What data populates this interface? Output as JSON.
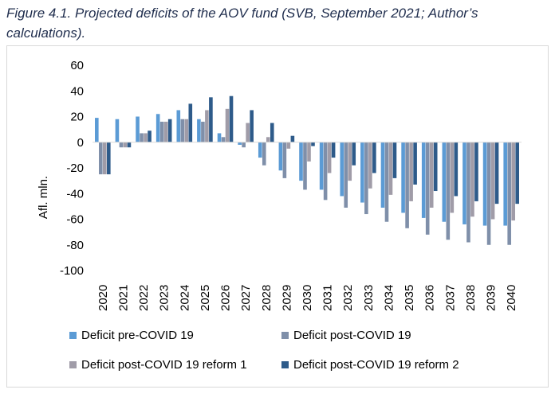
{
  "caption": "Figure 4.1. Projected deficits of the AOV fund (SVB, September 2021; Author’s calculations).",
  "chart_data": {
    "type": "bar",
    "title": "",
    "xlabel": "",
    "ylabel": "Afl. mln.",
    "ylim": [
      -100,
      60
    ],
    "yticks": [
      60,
      40,
      20,
      0,
      -20,
      -40,
      -60,
      -80,
      -100
    ],
    "grid": false,
    "legend_position": "bottom",
    "categories": [
      "2020",
      "2021",
      "2022",
      "2023",
      "2024",
      "2025",
      "2026",
      "2027",
      "2028",
      "2029",
      "2030",
      "2031",
      "2032",
      "2033",
      "2034",
      "2035",
      "2036",
      "2037",
      "2038",
      "2039",
      "2040"
    ],
    "series": [
      {
        "name": "Deficit pre-COVID 19",
        "color": "#5b9bd5",
        "values": [
          19,
          18,
          20,
          22,
          25,
          18,
          7,
          -2,
          -12,
          -22,
          -30,
          -37,
          -42,
          -47,
          -51,
          -55,
          -59,
          -62,
          -64,
          -65,
          -65
        ]
      },
      {
        "name": "Deficit post-COVID 19",
        "color": "#7f8fa9",
        "values": [
          -25,
          -4,
          7,
          16,
          18,
          16,
          4,
          -4,
          -18,
          -28,
          -37,
          -45,
          -51,
          -56,
          -62,
          -67,
          -72,
          -76,
          -78,
          -80,
          -80
        ]
      },
      {
        "name": "Deficit post-COVID 19 reform 1",
        "color": "#a09ca8",
        "values": [
          -25,
          -4,
          7,
          16,
          18,
          25,
          26,
          15,
          4,
          -5,
          -15,
          -24,
          -30,
          -36,
          -41,
          -46,
          -51,
          -55,
          -58,
          -60,
          -61
        ]
      },
      {
        "name": "Deficit post-COVID 19 reform 2",
        "color": "#2e5b8a",
        "values": [
          -25,
          -4,
          9,
          18,
          30,
          35,
          36,
          25,
          15,
          5,
          -3,
          -12,
          -18,
          -24,
          -28,
          -33,
          -38,
          -42,
          -46,
          -48,
          -48
        ]
      }
    ]
  }
}
